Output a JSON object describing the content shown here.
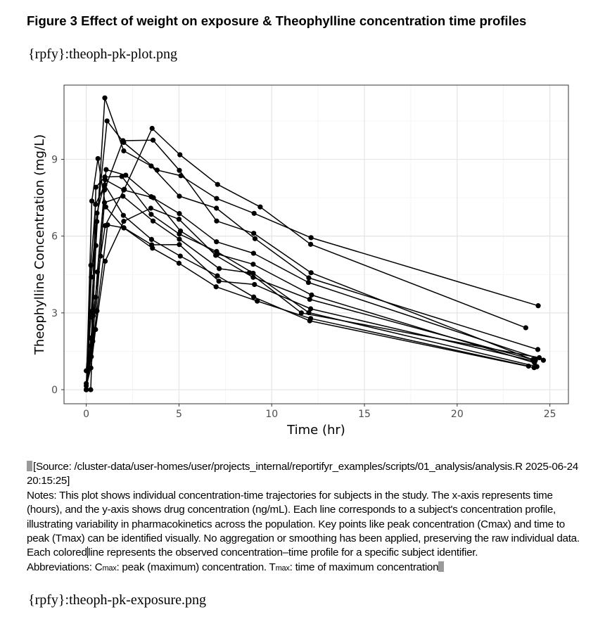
{
  "title": "Figure 3 Effect of weight on exposure & Theophylline concentration time profiles",
  "placeholders": {
    "first": "{rpfy}:theoph-pk-plot.png",
    "second": "{rpfy}:theoph-pk-exposure.png"
  },
  "notes": {
    "source": "[Source: /cluster-data/user-homes/user/projects_internal/reportifyr_examples/scripts/01_analysis/analysis.R 2025-06-24 20:15:25]",
    "notes_part1": "Notes: This plot shows individual concentration-time trajectories for subjects in the study. The x-axis represents time (hours)",
    "notes_part2": " and the y-axis shows drug concentration (ng/mL). Each line corresponds to a subject's concentration profile, illustrating variability in pharmacokinetics across the population. Key points like peak concentration (Cmax) and time to peak (Tmax) can be identified visually. No aggregation or smoothing has been applied, preserving the raw individual data. Each colored",
    "notes_part3": "line represents the observed concentration–time profile for a specific subject identifier.",
    "abbrev_prefix": "Abbreviations: C",
    "abbrev_cmax_sub": "max",
    "abbrev_cmax_text": ": peak (maximum) concentration. T",
    "abbrev_tmax_sub": "max",
    "abbrev_tmax_text": ": time of maximum concentration"
  },
  "chart_data": {
    "type": "line",
    "xlabel": "Time (hr)",
    "ylabel": "Theophylline Concentration (mg/L)",
    "xlim": [
      -1.2,
      26.0
    ],
    "ylim": [
      -0.55,
      11.9
    ],
    "x_ticks": [
      0,
      5,
      10,
      15,
      20,
      25
    ],
    "y_ticks": [
      0,
      3,
      6,
      9
    ],
    "grid": true,
    "legend": "none",
    "line_color": "#000000",
    "series": [
      {
        "x": [
          0,
          0.25,
          0.57,
          1.12,
          2.02,
          3.82,
          5.1,
          7.03,
          9.05,
          12.12,
          24.37
        ],
        "y": [
          0.74,
          2.84,
          6.57,
          10.5,
          9.66,
          8.58,
          8.36,
          7.47,
          6.89,
          5.94,
          3.28
        ]
      },
      {
        "x": [
          0,
          0.27,
          0.52,
          1.0,
          1.92,
          3.5,
          5.02,
          7.03,
          9.0,
          12.0,
          24.3
        ],
        "y": [
          0,
          1.72,
          7.91,
          8.31,
          8.33,
          6.85,
          6.08,
          5.4,
          4.55,
          3.01,
          0.9
        ]
      },
      {
        "x": [
          0,
          0.27,
          0.58,
          1.02,
          2.02,
          3.62,
          5.08,
          7.07,
          9.0,
          12.15,
          24.17
        ],
        "y": [
          0,
          4.4,
          6.9,
          8.2,
          7.8,
          7.5,
          6.2,
          5.3,
          4.9,
          3.7,
          1.05
        ]
      },
      {
        "x": [
          0,
          0.35,
          0.6,
          1.07,
          2.13,
          3.5,
          5.02,
          7.02,
          9.02,
          11.98,
          24.65
        ],
        "y": [
          0,
          1.89,
          4.6,
          8.6,
          8.38,
          7.54,
          6.88,
          5.78,
          5.33,
          4.19,
          1.15
        ]
      },
      {
        "x": [
          0,
          0.3,
          0.52,
          1.0,
          2.02,
          3.5,
          5.02,
          7.02,
          9.1,
          12.0,
          24.35
        ],
        "y": [
          0,
          2.02,
          5.63,
          11.4,
          9.33,
          8.74,
          7.56,
          7.09,
          5.9,
          4.37,
          1.57
        ]
      },
      {
        "x": [
          0,
          0.27,
          0.58,
          1.15,
          2.03,
          3.57,
          5.0,
          7.0,
          9.22,
          12.1,
          23.85
        ],
        "y": [
          0,
          1.29,
          3.08,
          6.44,
          6.32,
          5.53,
          4.94,
          4.02,
          3.46,
          2.78,
          0.92
        ]
      },
      {
        "x": [
          0,
          0.25,
          0.5,
          1.02,
          2.02,
          3.48,
          5.0,
          6.98,
          9.0,
          12.05,
          24.22
        ],
        "y": [
          0.15,
          0.85,
          2.35,
          5.02,
          6.58,
          7.09,
          6.66,
          5.25,
          4.39,
          3.53,
          1.15
        ]
      },
      {
        "x": [
          0,
          0.25,
          0.52,
          0.98,
          1.98,
          3.6,
          5.02,
          7.17,
          8.8,
          11.6,
          24.43
        ],
        "y": [
          0,
          3.05,
          3.05,
          7.31,
          7.56,
          6.59,
          5.88,
          4.73,
          4.57,
          3.0,
          1.25
        ]
      },
      {
        "x": [
          0,
          0.3,
          0.63,
          1.05,
          2.02,
          3.53,
          5.02,
          7.15,
          9.07,
          12.1,
          24.12
        ],
        "y": [
          0,
          7.37,
          9.03,
          7.14,
          6.33,
          5.66,
          5.67,
          4.24,
          4.11,
          3.16,
          1.12
        ]
      },
      {
        "x": [
          0.24,
          0.37,
          0.77,
          1.02,
          2.05,
          3.55,
          5.05,
          7.08,
          9.38,
          12.1,
          23.7
        ],
        "y": [
          0,
          2.89,
          5.22,
          6.41,
          7.83,
          10.21,
          9.18,
          8.02,
          7.14,
          5.68,
          2.42
        ]
      },
      {
        "x": [
          0,
          0.25,
          0.5,
          0.98,
          1.98,
          3.6,
          5.02,
          7.03,
          9.03,
          12.12,
          24.08
        ],
        "y": [
          0.24,
          2.02,
          3.61,
          7.8,
          9.73,
          9.75,
          8.57,
          6.59,
          6.11,
          4.57,
          1.17
        ]
      },
      {
        "x": [
          0,
          0.25,
          0.5,
          1.0,
          2.0,
          3.52,
          5.07,
          7.07,
          9.03,
          12.05,
          24.15
        ],
        "y": [
          0,
          4.86,
          7.24,
          8.0,
          6.81,
          5.87,
          5.22,
          4.45,
          3.62,
          2.69,
          0.86
        ]
      }
    ]
  }
}
